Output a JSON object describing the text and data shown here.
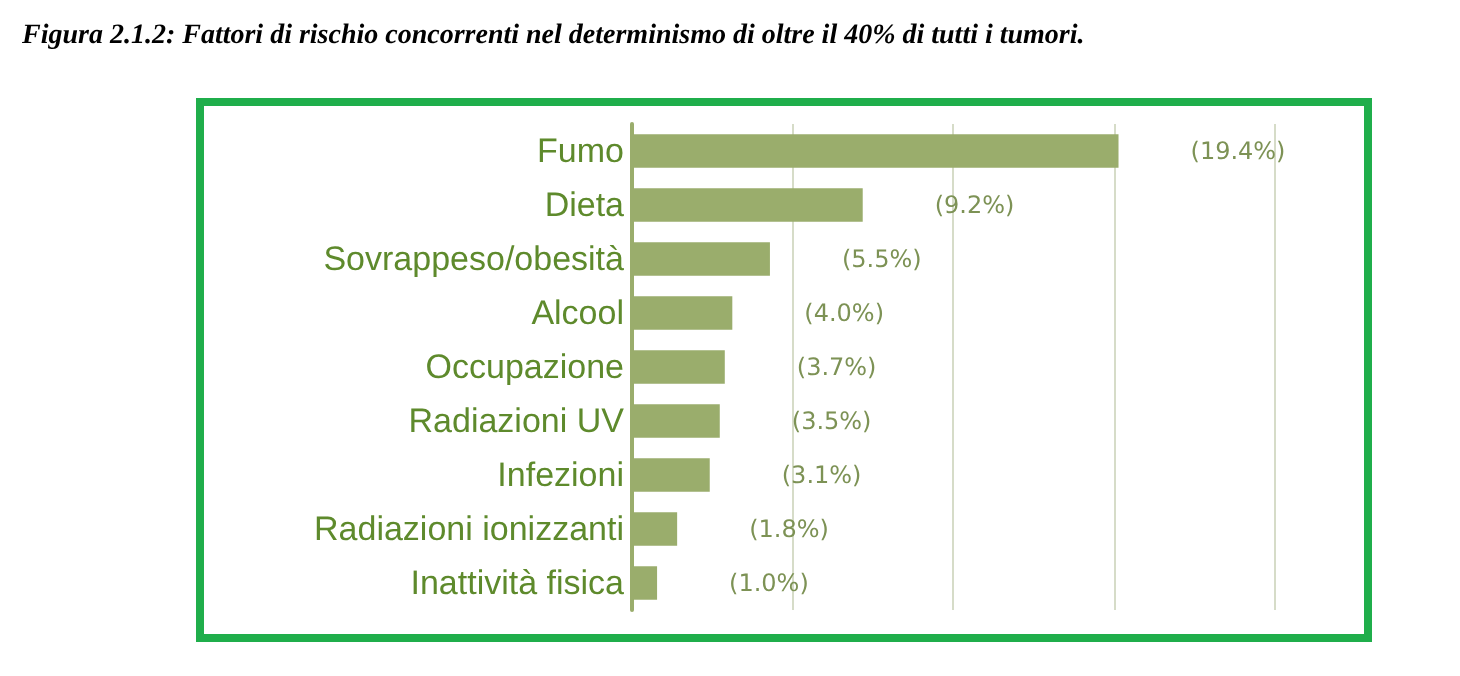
{
  "chart_data": {
    "type": "bar",
    "orientation": "horizontal",
    "title": "Figura 2.1.2: Fattori di rischio concorrenti nel determinismo di oltre il 40% di tutti i tumori.",
    "categories": [
      "Fumo",
      "Dieta",
      "Sovrappeso/obesità",
      "Alcool",
      "Occupazione",
      "Radiazioni UV",
      "Infezioni",
      "Radiazioni ionizzanti",
      "Inattività fisica"
    ],
    "values": [
      19.4,
      9.2,
      5.5,
      4.0,
      3.7,
      3.5,
      3.1,
      1.8,
      1.0
    ],
    "value_labels": [
      "(19.4%)",
      "(9.2%)",
      "(5.5%)",
      "(4.0%)",
      "(3.7%)",
      "(3.5%)",
      "(3.1%)",
      "(1.8%)",
      "(1.0%)"
    ],
    "color": "#9aad6c",
    "xlim": [
      0,
      25.6
    ],
    "xticks": [
      {
        "value": 0,
        "label": null
      },
      {
        "value": 6.4,
        "label": null
      },
      {
        "value": 12.8,
        "label": null
      },
      {
        "value": 19.2,
        "label": null
      },
      {
        "value": 25.6,
        "label": null
      }
    ],
    "grid": "x",
    "tick_labels": "y"
  }
}
